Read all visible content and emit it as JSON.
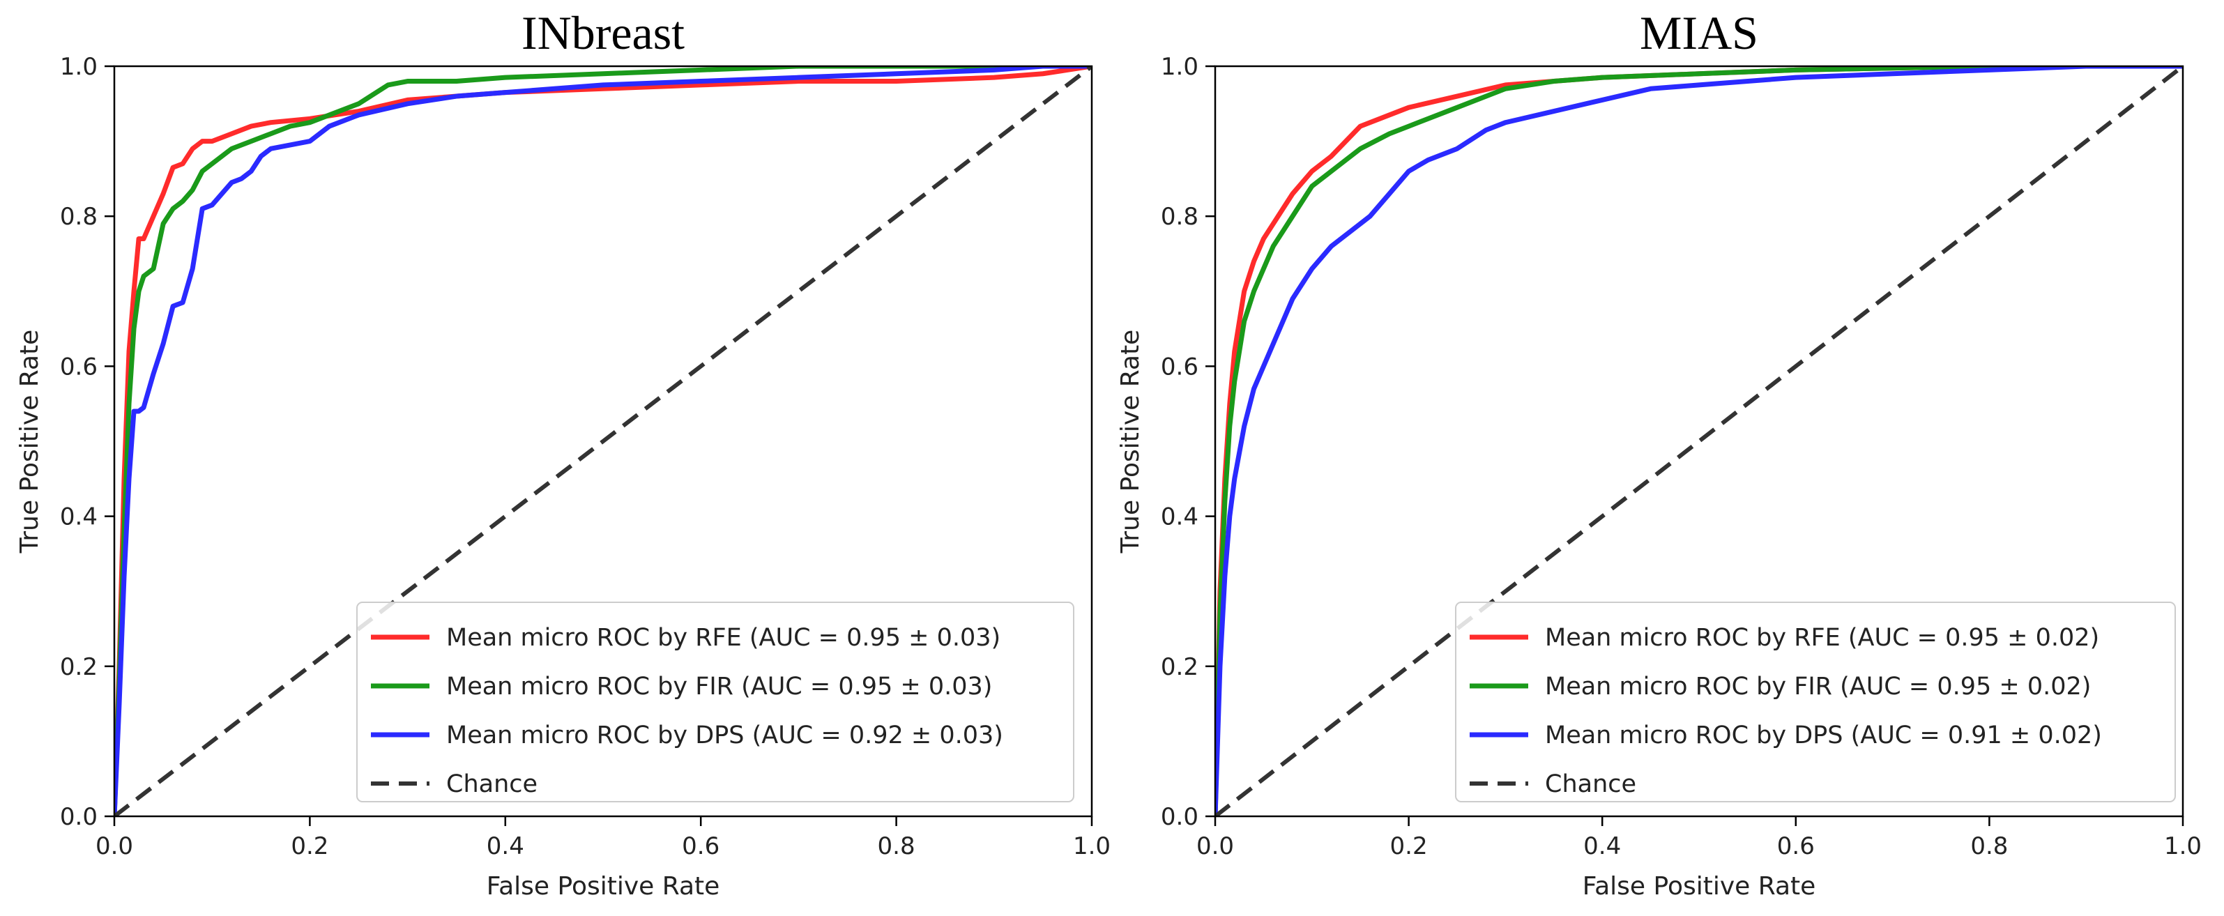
{
  "chart_data": [
    {
      "type": "line",
      "title": "INbreast",
      "xlabel": "False Positive Rate",
      "ylabel": "True Positive Rate",
      "xlim": [
        0.0,
        1.0
      ],
      "ylim": [
        0.0,
        1.0
      ],
      "xticks": [
        "0.0",
        "0.2",
        "0.4",
        "0.6",
        "0.8",
        "1.0"
      ],
      "yticks": [
        "0.0",
        "0.2",
        "0.4",
        "0.6",
        "0.8",
        "1.0"
      ],
      "grid": false,
      "legend_position": "lower-right",
      "series": [
        {
          "name": "Mean micro ROC by RFE (AUC = 0.95 ± 0.03)",
          "color": "#ff2b2b",
          "style": "solid",
          "x": [
            0.0,
            0.005,
            0.01,
            0.015,
            0.02,
            0.025,
            0.03,
            0.04,
            0.05,
            0.06,
            0.07,
            0.08,
            0.09,
            0.1,
            0.12,
            0.14,
            0.16,
            0.2,
            0.25,
            0.3,
            0.4,
            0.5,
            0.6,
            0.7,
            0.8,
            0.9,
            0.95,
            1.0
          ],
          "y": [
            0.0,
            0.2,
            0.45,
            0.62,
            0.7,
            0.77,
            0.77,
            0.8,
            0.83,
            0.865,
            0.87,
            0.89,
            0.9,
            0.9,
            0.91,
            0.92,
            0.925,
            0.93,
            0.94,
            0.955,
            0.965,
            0.97,
            0.975,
            0.98,
            0.98,
            0.985,
            0.99,
            1.0
          ]
        },
        {
          "name": "Mean micro ROC by FIR (AUC = 0.95 ± 0.03)",
          "color": "#1a9a1a",
          "style": "solid",
          "x": [
            0.0,
            0.005,
            0.01,
            0.015,
            0.02,
            0.025,
            0.03,
            0.04,
            0.05,
            0.06,
            0.07,
            0.08,
            0.09,
            0.1,
            0.12,
            0.14,
            0.16,
            0.18,
            0.2,
            0.22,
            0.25,
            0.28,
            0.3,
            0.35,
            0.4,
            0.5,
            0.6,
            0.7,
            0.8,
            0.9,
            1.0
          ],
          "y": [
            0.0,
            0.18,
            0.38,
            0.55,
            0.65,
            0.7,
            0.72,
            0.73,
            0.79,
            0.81,
            0.82,
            0.835,
            0.86,
            0.87,
            0.89,
            0.9,
            0.91,
            0.92,
            0.925,
            0.935,
            0.95,
            0.975,
            0.98,
            0.98,
            0.985,
            0.99,
            0.995,
            1.0,
            1.0,
            1.0,
            1.0
          ]
        },
        {
          "name": "Mean micro ROC by DPS (AUC = 0.92 ± 0.03)",
          "color": "#2a2aff",
          "style": "solid",
          "x": [
            0.0,
            0.005,
            0.01,
            0.015,
            0.02,
            0.025,
            0.03,
            0.04,
            0.05,
            0.06,
            0.07,
            0.08,
            0.09,
            0.1,
            0.11,
            0.12,
            0.13,
            0.14,
            0.15,
            0.16,
            0.18,
            0.2,
            0.22,
            0.25,
            0.3,
            0.35,
            0.4,
            0.5,
            0.6,
            0.7,
            0.8,
            0.9,
            0.95,
            1.0
          ],
          "y": [
            0.0,
            0.15,
            0.32,
            0.45,
            0.54,
            0.54,
            0.545,
            0.59,
            0.63,
            0.68,
            0.685,
            0.73,
            0.81,
            0.815,
            0.83,
            0.845,
            0.85,
            0.86,
            0.88,
            0.89,
            0.895,
            0.9,
            0.92,
            0.935,
            0.95,
            0.96,
            0.965,
            0.975,
            0.98,
            0.985,
            0.99,
            0.995,
            1.0,
            1.0
          ]
        },
        {
          "name": "Chance",
          "color": "#333333",
          "style": "dashed",
          "x": [
            0.0,
            1.0
          ],
          "y": [
            0.0,
            1.0
          ]
        }
      ]
    },
    {
      "type": "line",
      "title": "MIAS",
      "xlabel": "False Positive Rate",
      "ylabel": "True Positive Rate",
      "xlim": [
        0.0,
        1.0
      ],
      "ylim": [
        0.0,
        1.0
      ],
      "xticks": [
        "0.0",
        "0.2",
        "0.4",
        "0.6",
        "0.8",
        "1.0"
      ],
      "yticks": [
        "0.0",
        "0.2",
        "0.4",
        "0.6",
        "0.8",
        "1.0"
      ],
      "grid": false,
      "legend_position": "lower-right",
      "series": [
        {
          "name": "Mean micro ROC by RFE (AUC = 0.95 ± 0.02)",
          "color": "#ff2b2b",
          "style": "solid",
          "x": [
            0.0,
            0.005,
            0.01,
            0.015,
            0.02,
            0.03,
            0.04,
            0.05,
            0.06,
            0.07,
            0.08,
            0.1,
            0.12,
            0.15,
            0.18,
            0.2,
            0.25,
            0.3,
            0.35,
            0.4,
            0.5,
            0.6,
            0.8,
            1.0
          ],
          "y": [
            0.0,
            0.3,
            0.45,
            0.55,
            0.62,
            0.7,
            0.74,
            0.77,
            0.79,
            0.81,
            0.83,
            0.86,
            0.88,
            0.92,
            0.935,
            0.945,
            0.96,
            0.975,
            0.98,
            0.985,
            0.99,
            0.995,
            1.0,
            1.0
          ]
        },
        {
          "name": "Mean micro ROC by FIR (AUC = 0.95 ± 0.02)",
          "color": "#1a9a1a",
          "style": "solid",
          "x": [
            0.0,
            0.005,
            0.01,
            0.015,
            0.02,
            0.03,
            0.04,
            0.05,
            0.06,
            0.07,
            0.08,
            0.1,
            0.12,
            0.15,
            0.18,
            0.2,
            0.25,
            0.3,
            0.35,
            0.4,
            0.5,
            0.6,
            0.8,
            1.0
          ],
          "y": [
            0.0,
            0.27,
            0.42,
            0.52,
            0.58,
            0.66,
            0.7,
            0.73,
            0.76,
            0.78,
            0.8,
            0.84,
            0.86,
            0.89,
            0.91,
            0.92,
            0.945,
            0.97,
            0.98,
            0.985,
            0.99,
            0.995,
            1.0,
            1.0
          ]
        },
        {
          "name": "Mean micro ROC by DPS (AUC = 0.91 ± 0.02)",
          "color": "#2a2aff",
          "style": "solid",
          "x": [
            0.0,
            0.005,
            0.01,
            0.015,
            0.02,
            0.03,
            0.04,
            0.05,
            0.06,
            0.07,
            0.08,
            0.1,
            0.12,
            0.14,
            0.16,
            0.18,
            0.2,
            0.22,
            0.25,
            0.28,
            0.3,
            0.35,
            0.4,
            0.45,
            0.5,
            0.6,
            0.7,
            0.8,
            0.9,
            1.0
          ],
          "y": [
            0.0,
            0.2,
            0.32,
            0.4,
            0.45,
            0.52,
            0.57,
            0.6,
            0.63,
            0.66,
            0.69,
            0.73,
            0.76,
            0.78,
            0.8,
            0.83,
            0.86,
            0.875,
            0.89,
            0.915,
            0.925,
            0.94,
            0.955,
            0.97,
            0.975,
            0.985,
            0.99,
            0.995,
            1.0,
            1.0
          ]
        },
        {
          "name": "Chance",
          "color": "#333333",
          "style": "dashed",
          "x": [
            0.0,
            1.0
          ],
          "y": [
            0.0,
            1.0
          ]
        }
      ]
    }
  ]
}
